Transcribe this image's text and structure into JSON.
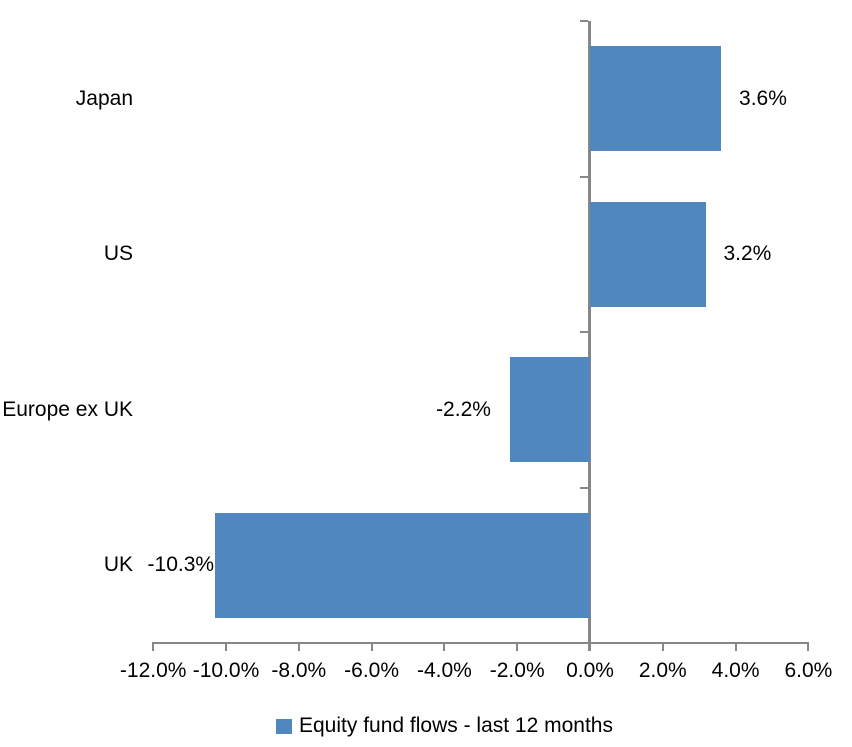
{
  "chart_data": {
    "type": "bar",
    "orientation": "horizontal",
    "title": "",
    "xlabel": "",
    "ylabel": "",
    "categories": [
      "Japan",
      "US",
      "Europe ex UK",
      "UK"
    ],
    "values": [
      3.6,
      3.2,
      -2.2,
      -10.3
    ],
    "value_labels": [
      "3.6%",
      "3.2%",
      "-2.2%",
      "-10.3%"
    ],
    "series_name": "Equity fund flows - last 12 months",
    "xlim": [
      -12,
      6
    ],
    "x_ticks": [
      -12,
      -10,
      -8,
      -6,
      -4,
      -2,
      0,
      2,
      4,
      6
    ],
    "x_tick_labels": [
      "-12.0%",
      "-10.0%",
      "-8.0%",
      "-6.0%",
      "-4.0%",
      "-2.0%",
      "0.0%",
      "2.0%",
      "4.0%",
      "6.0%"
    ],
    "grid": false,
    "legend_position": "bottom-center",
    "colors": {
      "bar": "#4F87BE",
      "axis": "#878787",
      "text": "#000000",
      "background": "#FFFFFF"
    }
  }
}
